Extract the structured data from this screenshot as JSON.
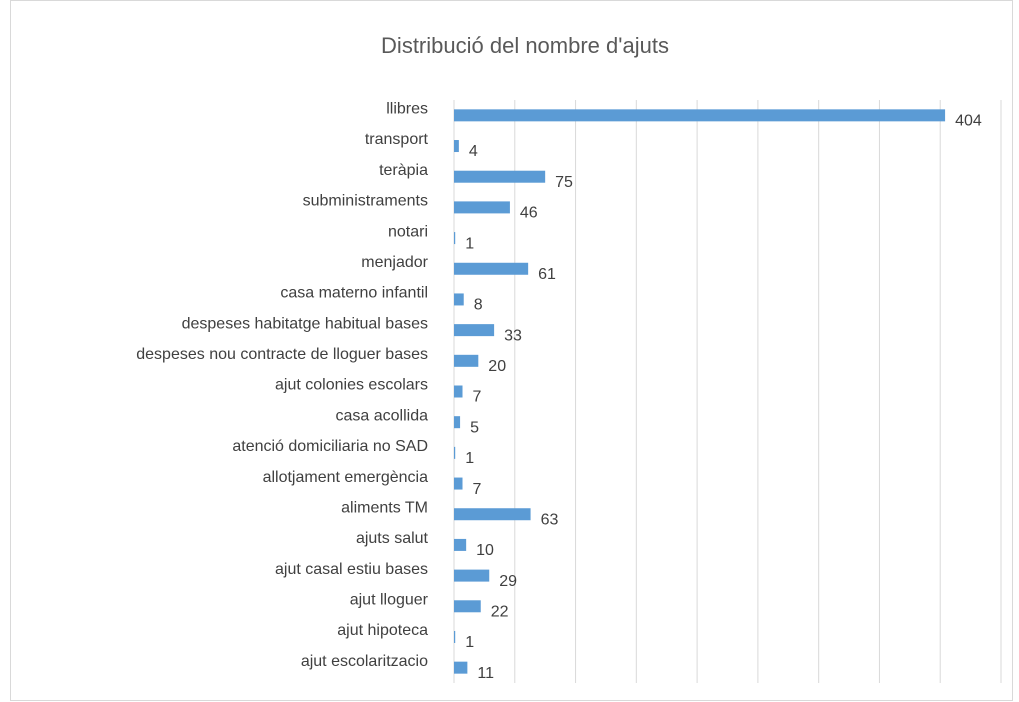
{
  "chart_data": {
    "type": "bar",
    "orientation": "horizontal",
    "title": "Distribució del nombre d'ajuts",
    "categories": [
      "llibres",
      "transport",
      "teràpia",
      "subministraments",
      "notari",
      "menjador",
      "casa materno infantil",
      "despeses habitatge habitual bases",
      "despeses nou contracte de lloguer bases",
      "ajut colonies escolars",
      "casa acollida",
      "atenció domiciliaria no SAD",
      "allotjament emergència",
      "aliments TM",
      "ajuts salut",
      "ajut casal estiu bases",
      "ajut lloguer",
      "ajut hipoteca",
      "ajut escolaritzacio"
    ],
    "values": [
      404,
      4,
      75,
      46,
      1,
      61,
      8,
      33,
      20,
      7,
      5,
      1,
      7,
      63,
      10,
      29,
      22,
      1,
      11
    ],
    "color": "#5b9bd5",
    "xlim": [
      0,
      450
    ],
    "xticks": [
      0,
      50,
      100,
      150,
      200,
      250,
      300,
      350,
      400,
      450
    ],
    "grid": true
  }
}
